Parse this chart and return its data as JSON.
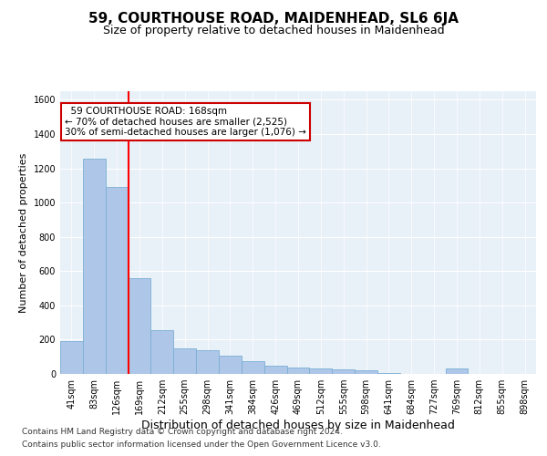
{
  "title": "59, COURTHOUSE ROAD, MAIDENHEAD, SL6 6JA",
  "subtitle": "Size of property relative to detached houses in Maidenhead",
  "xlabel": "Distribution of detached houses by size in Maidenhead",
  "ylabel": "Number of detached properties",
  "footer_line1": "Contains HM Land Registry data © Crown copyright and database right 2024.",
  "footer_line2": "Contains public sector information licensed under the Open Government Licence v3.0.",
  "bar_labels": [
    "41sqm",
    "83sqm",
    "126sqm",
    "169sqm",
    "212sqm",
    "255sqm",
    "298sqm",
    "341sqm",
    "384sqm",
    "426sqm",
    "469sqm",
    "512sqm",
    "555sqm",
    "598sqm",
    "641sqm",
    "684sqm",
    "727sqm",
    "769sqm",
    "812sqm",
    "855sqm",
    "898sqm"
  ],
  "bar_values": [
    190,
    1255,
    1090,
    560,
    255,
    150,
    140,
    105,
    75,
    50,
    35,
    30,
    25,
    20,
    5,
    0,
    0,
    30,
    0,
    0,
    0
  ],
  "bar_color": "#aec6e8",
  "bar_edge_color": "#7aafd4",
  "background_color": "#e8f0f8",
  "ylim": [
    0,
    1650
  ],
  "yticks": [
    0,
    200,
    400,
    600,
    800,
    1000,
    1200,
    1400,
    1600
  ],
  "red_line_x": 2.5,
  "annotation_text": "  59 COURTHOUSE ROAD: 168sqm  \n← 70% of detached houses are smaller (2,525)\n30% of semi-detached houses are larger (1,076) →",
  "annotation_box_color": "#ffffff",
  "annotation_box_edge": "#cc0000",
  "title_fontsize": 11,
  "subtitle_fontsize": 9,
  "xlabel_fontsize": 9,
  "ylabel_fontsize": 8,
  "tick_fontsize": 7,
  "annotation_fontsize": 7.5,
  "footer_fontsize": 6.5
}
